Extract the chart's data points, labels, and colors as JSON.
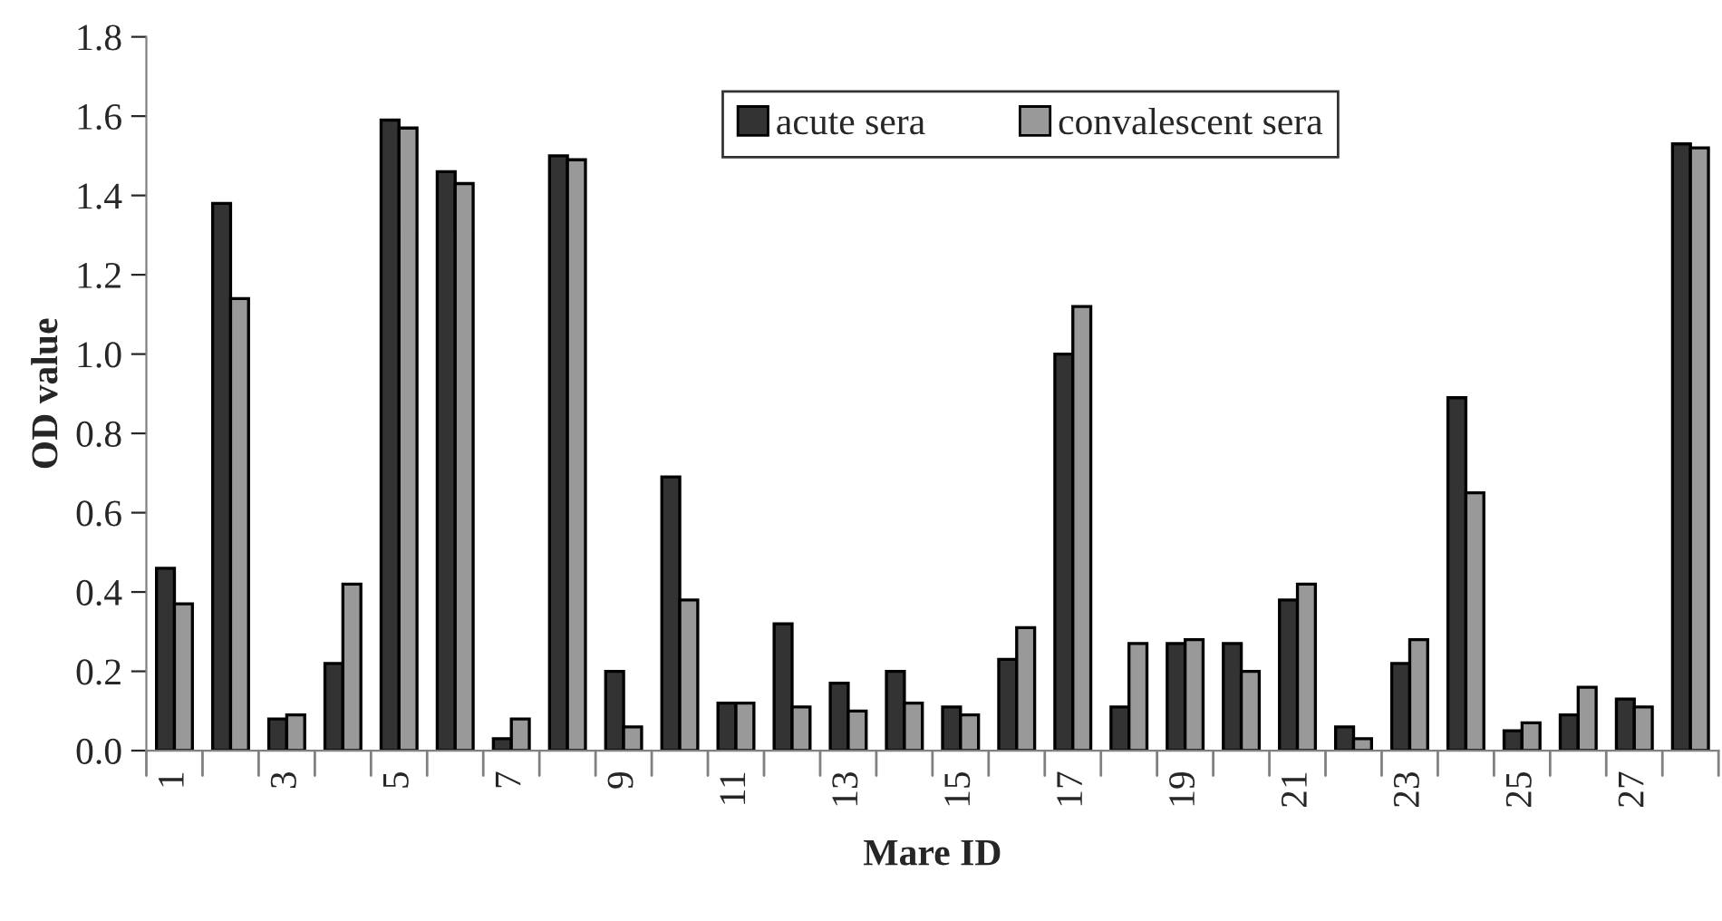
{
  "chart_data": {
    "type": "bar",
    "xlabel": "Mare ID",
    "ylabel": "OD value",
    "categories": [
      "1",
      null,
      "3",
      null,
      "5",
      null,
      "7",
      null,
      "9",
      null,
      "11",
      null,
      "13",
      null,
      "15",
      null,
      "17",
      null,
      "19",
      null,
      "21",
      null,
      "23",
      null,
      "25",
      null,
      "27",
      null
    ],
    "series": [
      {
        "name": "acute sera",
        "color": "#333333",
        "values": [
          0.46,
          1.38,
          0.08,
          0.22,
          1.59,
          1.46,
          0.03,
          1.5,
          0.2,
          0.69,
          0.12,
          0.32,
          0.17,
          0.2,
          0.11,
          0.23,
          1.0,
          0.11,
          0.27,
          0.27,
          0.38,
          0.06,
          0.22,
          0.89,
          0.05,
          0.09,
          0.13,
          1.53
        ]
      },
      {
        "name": "convalescent sera",
        "color": "#999999",
        "values": [
          0.37,
          1.14,
          0.09,
          0.42,
          1.57,
          1.43,
          0.08,
          1.49,
          0.06,
          0.38,
          0.12,
          0.11,
          0.1,
          0.12,
          0.09,
          0.31,
          1.12,
          0.27,
          0.28,
          0.2,
          0.42,
          0.03,
          0.28,
          0.65,
          0.07,
          0.16,
          0.11,
          1.52
        ]
      }
    ],
    "ylim": [
      0,
      1.8
    ],
    "yticks": [
      {
        "value": 0,
        "label": "0.0"
      },
      {
        "value": 0.2,
        "label": "0.2"
      },
      {
        "value": 0.4,
        "label": "0.4"
      },
      {
        "value": 0.6,
        "label": "0.6"
      },
      {
        "value": 0.8,
        "label": "0.8"
      },
      {
        "value": 1.0,
        "label": "1.0"
      },
      {
        "value": 1.2,
        "label": "1.2"
      },
      {
        "value": 1.4,
        "label": "1.4"
      },
      {
        "value": 1.6,
        "label": "1.6"
      },
      {
        "value": 1.8,
        "label": "1.8"
      }
    ],
    "grid": false,
    "legend": "top right"
  }
}
